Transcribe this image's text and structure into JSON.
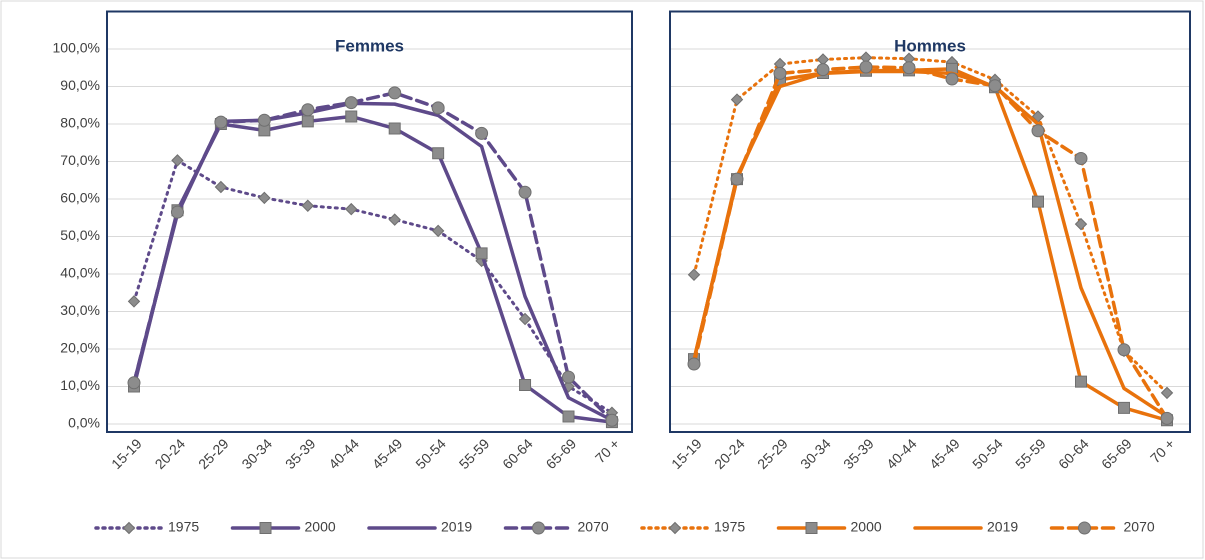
{
  "chart_data": [
    {
      "type": "line",
      "title": "Femmes",
      "categories": [
        "15-19",
        "20-24",
        "25-29",
        "30-34",
        "35-39",
        "40-44",
        "45-49",
        "50-54",
        "55-59",
        "60-64",
        "65-69",
        "70 +"
      ],
      "ylim": [
        0,
        110
      ],
      "yticks": [
        {
          "value": 0,
          "label": "0,0%"
        },
        {
          "value": 10,
          "label": "10,0%"
        },
        {
          "value": 20,
          "label": "20,0%"
        },
        {
          "value": 30,
          "label": "30,0%"
        },
        {
          "value": 40,
          "label": "40,0%"
        },
        {
          "value": 50,
          "label": "50,0%"
        },
        {
          "value": 60,
          "label": "60,0%"
        },
        {
          "value": 70,
          "label": "70,0%"
        },
        {
          "value": 80,
          "label": "80,0%"
        },
        {
          "value": 90,
          "label": "90,0%"
        },
        {
          "value": 100,
          "label": "100,0%"
        }
      ],
      "grid": true,
      "series": [
        {
          "name": "1975",
          "color": "#5e4a8a",
          "dash": "dotted",
          "marker": "diamond",
          "values": [
            32.7,
            70.3,
            63.2,
            60.3,
            58.2,
            57.3,
            54.5,
            51.5,
            43.5,
            28,
            10,
            3
          ]
        },
        {
          "name": "2000",
          "color": "#5e4a8a",
          "dash": "solid",
          "marker": "square",
          "values": [
            10,
            57,
            80,
            78.3,
            80.7,
            82,
            78.8,
            72.2,
            45.5,
            10.4,
            2,
            0.5
          ]
        },
        {
          "name": "2019",
          "color": "#5e4a8a",
          "dash": "solid",
          "marker": "none",
          "values": [
            11,
            56,
            80.7,
            81,
            83,
            85.5,
            85.3,
            82.3,
            74,
            34,
            7,
            1
          ]
        },
        {
          "name": "2070",
          "color": "#5e4a8a",
          "dash": "dashed",
          "marker": "circle",
          "values": [
            11,
            56.5,
            80.5,
            81,
            83.8,
            85.7,
            88.3,
            84.3,
            77.5,
            61.8,
            12.5,
            1
          ]
        }
      ]
    },
    {
      "type": "line",
      "title": "Hommes",
      "sharey": true,
      "categories": [
        "15-19",
        "20-24",
        "25-29",
        "30-34",
        "35-39",
        "40-44",
        "45-49",
        "50-54",
        "55-59",
        "60-64",
        "65-69",
        "70 +"
      ],
      "grid": true,
      "series": [
        {
          "name": "1975",
          "color": "#e8720c",
          "dash": "dotted",
          "marker": "diamond",
          "values": [
            39.8,
            86.5,
            96,
            97.2,
            97.7,
            97.4,
            96.5,
            91.8,
            82,
            53.3,
            19.5,
            8.3
          ]
        },
        {
          "name": "2000",
          "color": "#e8720c",
          "dash": "solid",
          "marker": "square",
          "values": [
            17.3,
            65.3,
            91.8,
            93.6,
            94.2,
            94.3,
            94.7,
            89.8,
            59.3,
            11.3,
            4.3,
            1
          ]
        },
        {
          "name": "2019",
          "color": "#e8720c",
          "dash": "solid",
          "marker": "none",
          "values": [
            17,
            66,
            90,
            93.5,
            94,
            94,
            93.5,
            90,
            80,
            36.3,
            9.5,
            2
          ]
        },
        {
          "name": "2070",
          "color": "#e8720c",
          "dash": "dashed",
          "marker": "circle",
          "values": [
            16,
            65.3,
            93.5,
            94.5,
            95.2,
            95,
            92,
            90.2,
            78.2,
            70.8,
            19.8,
            1.5
          ]
        }
      ]
    }
  ]
}
